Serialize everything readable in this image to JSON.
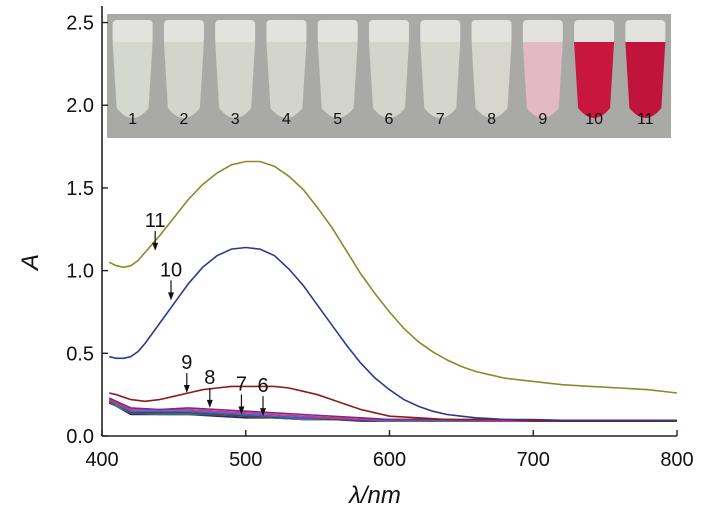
{
  "chart_data": {
    "type": "line",
    "xlabel": "λ/nm",
    "ylabel": "A",
    "xlim": [
      400,
      800
    ],
    "ylim": [
      0,
      2.6
    ],
    "xticks": [
      400,
      500,
      600,
      700,
      800
    ],
    "yticks": [
      0.0,
      0.5,
      1.0,
      1.5,
      2.0,
      2.5
    ],
    "xtick_labels": [
      "400",
      "500",
      "600",
      "700",
      "800"
    ],
    "ytick_labels": [
      "0.0",
      "0.5",
      "1.0",
      "1.5",
      "2.0",
      "2.5"
    ],
    "grid": false,
    "series": [
      {
        "name": "11",
        "color": "#8a8a2a",
        "x": [
          405,
          410,
          415,
          420,
          425,
          430,
          440,
          450,
          460,
          470,
          480,
          490,
          500,
          510,
          520,
          530,
          540,
          550,
          560,
          570,
          580,
          590,
          600,
          610,
          620,
          630,
          640,
          650,
          660,
          670,
          680,
          690,
          700,
          720,
          740,
          760,
          780,
          800
        ],
        "y": [
          1.05,
          1.03,
          1.02,
          1.03,
          1.06,
          1.11,
          1.21,
          1.32,
          1.43,
          1.52,
          1.59,
          1.64,
          1.66,
          1.66,
          1.63,
          1.57,
          1.49,
          1.38,
          1.26,
          1.12,
          0.98,
          0.86,
          0.75,
          0.65,
          0.57,
          0.51,
          0.46,
          0.42,
          0.39,
          0.37,
          0.35,
          0.34,
          0.33,
          0.31,
          0.3,
          0.29,
          0.28,
          0.26
        ]
      },
      {
        "name": "10",
        "color": "#2b3a8c",
        "x": [
          405,
          410,
          415,
          420,
          425,
          430,
          440,
          450,
          460,
          470,
          480,
          490,
          500,
          510,
          520,
          530,
          540,
          550,
          560,
          570,
          580,
          590,
          600,
          610,
          620,
          630,
          640,
          650,
          660,
          670,
          680,
          690,
          700,
          720,
          740,
          760,
          780,
          800
        ],
        "y": [
          0.48,
          0.47,
          0.47,
          0.48,
          0.51,
          0.56,
          0.68,
          0.8,
          0.92,
          1.02,
          1.09,
          1.13,
          1.14,
          1.13,
          1.09,
          1.01,
          0.91,
          0.79,
          0.67,
          0.55,
          0.44,
          0.35,
          0.28,
          0.22,
          0.18,
          0.15,
          0.13,
          0.12,
          0.11,
          0.105,
          0.1,
          0.1,
          0.1,
          0.095,
          0.095,
          0.095,
          0.095,
          0.095
        ]
      },
      {
        "name": "9",
        "color": "#8b1c1c",
        "x": [
          405,
          410,
          420,
          430,
          440,
          450,
          460,
          470,
          480,
          490,
          500,
          510,
          520,
          530,
          540,
          550,
          560,
          570,
          580,
          590,
          600,
          620,
          640,
          660,
          680,
          700,
          750,
          800
        ],
        "y": [
          0.26,
          0.25,
          0.22,
          0.21,
          0.22,
          0.24,
          0.26,
          0.28,
          0.29,
          0.3,
          0.3,
          0.3,
          0.3,
          0.29,
          0.27,
          0.25,
          0.22,
          0.19,
          0.16,
          0.14,
          0.12,
          0.11,
          0.1,
          0.1,
          0.1,
          0.09,
          0.09,
          0.09
        ]
      },
      {
        "name": "8",
        "color": "#7a2a8c",
        "x": [
          405,
          410,
          420,
          440,
          460,
          480,
          500,
          520,
          540,
          560,
          580,
          600,
          640,
          680,
          720,
          760,
          800
        ],
        "y": [
          0.23,
          0.21,
          0.17,
          0.16,
          0.17,
          0.16,
          0.15,
          0.14,
          0.13,
          0.12,
          0.11,
          0.1,
          0.1,
          0.1,
          0.09,
          0.09,
          0.09
        ]
      },
      {
        "name": "7",
        "color": "#d63384",
        "x": [
          405,
          410,
          420,
          440,
          460,
          480,
          500,
          520,
          540,
          560,
          580,
          600,
          640,
          680,
          720,
          760,
          800
        ],
        "y": [
          0.22,
          0.2,
          0.16,
          0.16,
          0.16,
          0.15,
          0.14,
          0.13,
          0.12,
          0.11,
          0.1,
          0.1,
          0.1,
          0.09,
          0.09,
          0.09,
          0.09
        ]
      },
      {
        "name": "6",
        "color": "#3a5fd6",
        "x": [
          405,
          410,
          420,
          440,
          460,
          480,
          500,
          520,
          540,
          560,
          580,
          600,
          640,
          680,
          720,
          760,
          800
        ],
        "y": [
          0.22,
          0.2,
          0.15,
          0.15,
          0.15,
          0.14,
          0.13,
          0.12,
          0.11,
          0.11,
          0.1,
          0.1,
          0.1,
          0.09,
          0.09,
          0.09,
          0.09
        ]
      },
      {
        "name": "5",
        "color": "#2d8a6a",
        "x": [
          405,
          410,
          420,
          440,
          460,
          480,
          500,
          520,
          540,
          560,
          580,
          600,
          640,
          680,
          720,
          760,
          800
        ],
        "y": [
          0.22,
          0.19,
          0.15,
          0.15,
          0.15,
          0.14,
          0.13,
          0.12,
          0.11,
          0.11,
          0.1,
          0.1,
          0.1,
          0.09,
          0.09,
          0.09,
          0.09
        ]
      },
      {
        "name": "4",
        "color": "#4a4a4a",
        "x": [
          405,
          410,
          420,
          440,
          460,
          480,
          500,
          520,
          540,
          560,
          580,
          600,
          640,
          680,
          720,
          760,
          800
        ],
        "y": [
          0.21,
          0.19,
          0.14,
          0.14,
          0.14,
          0.13,
          0.12,
          0.11,
          0.11,
          0.1,
          0.1,
          0.1,
          0.1,
          0.09,
          0.09,
          0.09,
          0.09
        ]
      },
      {
        "name": "3",
        "color": "#5a6a9a",
        "x": [
          405,
          410,
          420,
          440,
          460,
          480,
          500,
          520,
          540,
          560,
          580,
          600,
          640,
          680,
          720,
          760,
          800
        ],
        "y": [
          0.21,
          0.18,
          0.14,
          0.14,
          0.14,
          0.13,
          0.12,
          0.11,
          0.1,
          0.1,
          0.1,
          0.09,
          0.09,
          0.09,
          0.09,
          0.09,
          0.09
        ]
      },
      {
        "name": "2",
        "color": "#3b6b8a",
        "x": [
          405,
          410,
          420,
          440,
          460,
          480,
          500,
          520,
          540,
          560,
          580,
          600,
          640,
          680,
          720,
          760,
          800
        ],
        "y": [
          0.21,
          0.18,
          0.14,
          0.13,
          0.13,
          0.13,
          0.12,
          0.11,
          0.1,
          0.1,
          0.1,
          0.09,
          0.09,
          0.09,
          0.09,
          0.09,
          0.09
        ]
      },
      {
        "name": "1",
        "color": "#2a2a6a",
        "x": [
          405,
          410,
          420,
          440,
          460,
          480,
          500,
          520,
          540,
          560,
          580,
          600,
          640,
          680,
          720,
          760,
          800
        ],
        "y": [
          0.2,
          0.18,
          0.13,
          0.13,
          0.13,
          0.12,
          0.11,
          0.11,
          0.1,
          0.1,
          0.09,
          0.09,
          0.09,
          0.09,
          0.09,
          0.09,
          0.09
        ]
      }
    ],
    "annotations": [
      {
        "text": "11",
        "x": 437,
        "y": 1.12
      },
      {
        "text": "10",
        "x": 448,
        "y": 0.82
      },
      {
        "text": "9",
        "x": 459,
        "y": 0.26
      },
      {
        "text": "8",
        "x": 475,
        "y": 0.17
      },
      {
        "text": "7",
        "x": 497,
        "y": 0.13
      },
      {
        "text": "6",
        "x": 512,
        "y": 0.12
      }
    ]
  },
  "inset_photo": {
    "tube_labels": [
      "1",
      "2",
      "3",
      "4",
      "5",
      "6",
      "7",
      "8",
      "9",
      "10",
      "11"
    ],
    "tube_colors": [
      "#d5d8cd",
      "#d3d5cb",
      "#d4d6cc",
      "#d3d5cb",
      "#d2d4ca",
      "#d3d5cb",
      "#d4d6cc",
      "#d6d6cc",
      "#e3b9c3",
      "#c8163f",
      "#c0143c"
    ],
    "background_color": "#a9aaa6"
  }
}
